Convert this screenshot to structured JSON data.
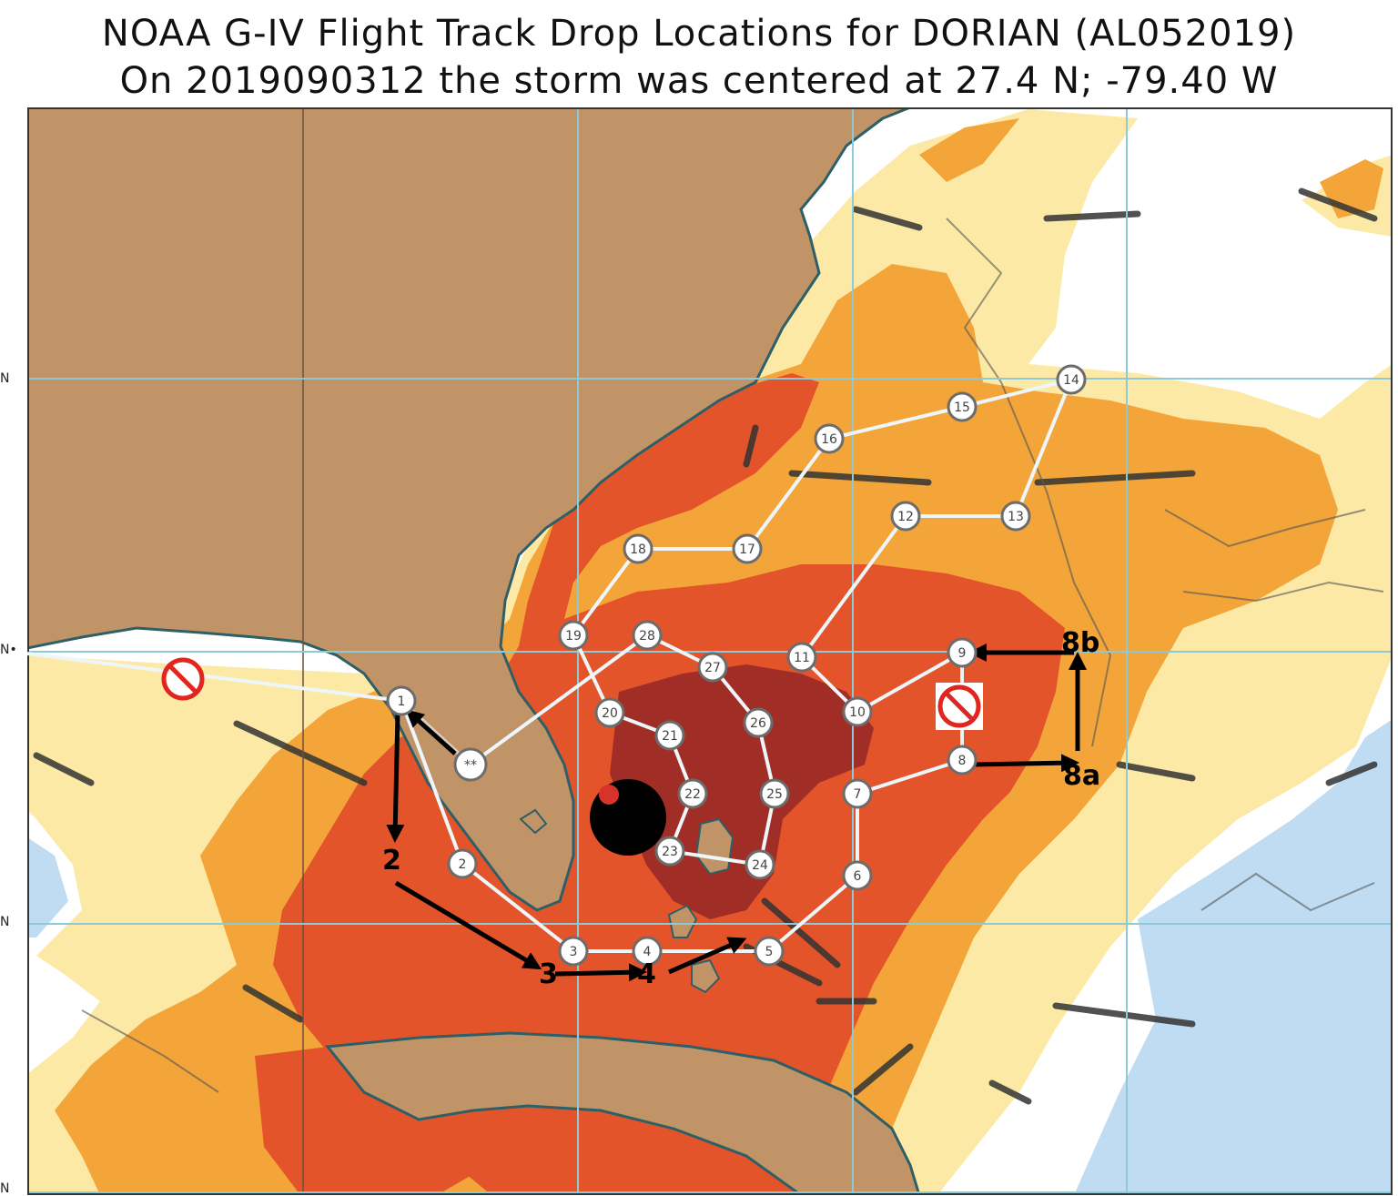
{
  "header": {
    "title": "NOAA G-IV Flight Track Drop Locations for DORIAN (AL052019)",
    "subtitle": "On 2019090312 the storm was centered at 27.4 N; -79.40 W"
  },
  "axis": {
    "lat_tick_labels": [
      "N",
      "N•",
      "N",
      "N"
    ]
  },
  "colors": {
    "land": "#c19468",
    "coast": "#2e5f66",
    "ocean_white": "#ffffff",
    "shade_light_yellow": "#fce9a6",
    "shade_orange": "#f3a53a",
    "shade_red_orange": "#e4542a",
    "shade_dark_red": "#a12d27",
    "shallow_blue": "#bfdcf2",
    "grid": "#8ec9d8",
    "track": "#eef6fa",
    "marker_fill": "#ffffff",
    "marker_border": "#6c6c6c",
    "arrow": "#000000",
    "storm": "#000000",
    "storm_center": "#d8332a",
    "no_drop": "#e0261f"
  },
  "map_symbols": {
    "storm_icon": "hurricane-symbol",
    "cancelled_icon": "prohibited-circle-icon"
  },
  "drop_points": [
    "1",
    "2",
    "3",
    "4",
    "5",
    "6",
    "7",
    "8",
    "9",
    "10",
    "11",
    "12",
    "13",
    "14",
    "15",
    "16",
    "17",
    "18",
    "19",
    "20",
    "21",
    "22",
    "23",
    "24",
    "25",
    "26",
    "27",
    "28",
    "**"
  ],
  "annotations": [
    "2",
    "3",
    "4",
    "8a",
    "8b"
  ]
}
